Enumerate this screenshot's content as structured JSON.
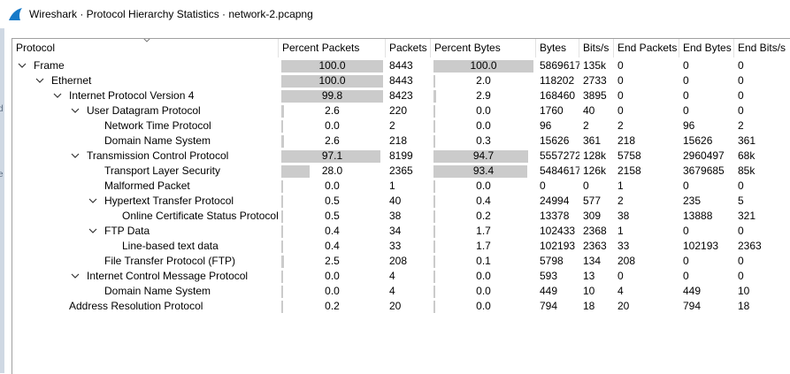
{
  "window": {
    "title": "Wireshark · Protocol Hierarchy Statistics · network-2.pcapng",
    "app_icon": "wireshark-fin-icon"
  },
  "table": {
    "columns": [
      "Protocol",
      "Percent Packets",
      "Packets",
      "Percent Bytes",
      "Bytes",
      "Bits/s",
      "End Packets",
      "End Bytes",
      "End Bits/s"
    ],
    "rows": [
      {
        "level": 0,
        "expanded": true,
        "protocol": "Frame",
        "pct_packets": "100.0",
        "packets": "8443",
        "pct_bytes": "100.0",
        "bytes": "5869617",
        "bits_s": "135k",
        "end_packets": "0",
        "end_bytes": "0",
        "end_bits_s": "0"
      },
      {
        "level": 1,
        "expanded": true,
        "protocol": "Ethernet",
        "pct_packets": "100.0",
        "packets": "8443",
        "pct_bytes": "2.0",
        "bytes": "118202",
        "bits_s": "2733",
        "end_packets": "0",
        "end_bytes": "0",
        "end_bits_s": "0"
      },
      {
        "level": 2,
        "expanded": true,
        "protocol": "Internet Protocol Version 4",
        "pct_packets": "99.8",
        "packets": "8423",
        "pct_bytes": "2.9",
        "bytes": "168460",
        "bits_s": "3895",
        "end_packets": "0",
        "end_bytes": "0",
        "end_bits_s": "0"
      },
      {
        "level": 3,
        "expanded": true,
        "protocol": "User Datagram Protocol",
        "pct_packets": "2.6",
        "packets": "220",
        "pct_bytes": "0.0",
        "bytes": "1760",
        "bits_s": "40",
        "end_packets": "0",
        "end_bytes": "0",
        "end_bits_s": "0"
      },
      {
        "level": 4,
        "expanded": null,
        "protocol": "Network Time Protocol",
        "pct_packets": "0.0",
        "packets": "2",
        "pct_bytes": "0.0",
        "bytes": "96",
        "bits_s": "2",
        "end_packets": "2",
        "end_bytes": "96",
        "end_bits_s": "2"
      },
      {
        "level": 4,
        "expanded": null,
        "protocol": "Domain Name System",
        "pct_packets": "2.6",
        "packets": "218",
        "pct_bytes": "0.3",
        "bytes": "15626",
        "bits_s": "361",
        "end_packets": "218",
        "end_bytes": "15626",
        "end_bits_s": "361"
      },
      {
        "level": 3,
        "expanded": true,
        "protocol": "Transmission Control Protocol",
        "pct_packets": "97.1",
        "packets": "8199",
        "pct_bytes": "94.7",
        "bytes": "5557272",
        "bits_s": "128k",
        "end_packets": "5758",
        "end_bytes": "2960497",
        "end_bits_s": "68k"
      },
      {
        "level": 4,
        "expanded": null,
        "protocol": "Transport Layer Security",
        "pct_packets": "28.0",
        "packets": "2365",
        "pct_bytes": "93.4",
        "bytes": "5484617",
        "bits_s": "126k",
        "end_packets": "2158",
        "end_bytes": "3679685",
        "end_bits_s": "85k"
      },
      {
        "level": 4,
        "expanded": null,
        "protocol": "Malformed Packet",
        "pct_packets": "0.0",
        "packets": "1",
        "pct_bytes": "0.0",
        "bytes": "0",
        "bits_s": "0",
        "end_packets": "1",
        "end_bytes": "0",
        "end_bits_s": "0"
      },
      {
        "level": 4,
        "expanded": true,
        "protocol": "Hypertext Transfer Protocol",
        "pct_packets": "0.5",
        "packets": "40",
        "pct_bytes": "0.4",
        "bytes": "24994",
        "bits_s": "577",
        "end_packets": "2",
        "end_bytes": "235",
        "end_bits_s": "5"
      },
      {
        "level": 5,
        "expanded": null,
        "protocol": "Online Certificate Status Protocol",
        "pct_packets": "0.5",
        "packets": "38",
        "pct_bytes": "0.2",
        "bytes": "13378",
        "bits_s": "309",
        "end_packets": "38",
        "end_bytes": "13888",
        "end_bits_s": "321"
      },
      {
        "level": 4,
        "expanded": true,
        "protocol": "FTP Data",
        "pct_packets": "0.4",
        "packets": "34",
        "pct_bytes": "1.7",
        "bytes": "102433",
        "bits_s": "2368",
        "end_packets": "1",
        "end_bytes": "0",
        "end_bits_s": "0"
      },
      {
        "level": 5,
        "expanded": null,
        "protocol": "Line-based text data",
        "pct_packets": "0.4",
        "packets": "33",
        "pct_bytes": "1.7",
        "bytes": "102193",
        "bits_s": "2363",
        "end_packets": "33",
        "end_bytes": "102193",
        "end_bits_s": "2363"
      },
      {
        "level": 4,
        "expanded": null,
        "protocol": "File Transfer Protocol (FTP)",
        "pct_packets": "2.5",
        "packets": "208",
        "pct_bytes": "0.1",
        "bytes": "5798",
        "bits_s": "134",
        "end_packets": "208",
        "end_bytes": "0",
        "end_bits_s": "0"
      },
      {
        "level": 3,
        "expanded": true,
        "protocol": "Internet Control Message Protocol",
        "pct_packets": "0.0",
        "packets": "4",
        "pct_bytes": "0.0",
        "bytes": "593",
        "bits_s": "13",
        "end_packets": "0",
        "end_bytes": "0",
        "end_bits_s": "0"
      },
      {
        "level": 4,
        "expanded": null,
        "protocol": "Domain Name System",
        "pct_packets": "0.0",
        "packets": "4",
        "pct_bytes": "0.0",
        "bytes": "449",
        "bits_s": "10",
        "end_packets": "4",
        "end_bytes": "449",
        "end_bits_s": "10"
      },
      {
        "level": 2,
        "expanded": null,
        "protocol": "Address Resolution Protocol",
        "pct_packets": "0.2",
        "packets": "20",
        "pct_bytes": "0.0",
        "bytes": "794",
        "bits_s": "18",
        "end_packets": "20",
        "end_bytes": "794",
        "end_bits_s": "18"
      }
    ]
  },
  "colors": {
    "bar_fill": "#cbcbcb",
    "header_border": "#e2e2e2",
    "wireshark_blue": "#1679c8"
  }
}
